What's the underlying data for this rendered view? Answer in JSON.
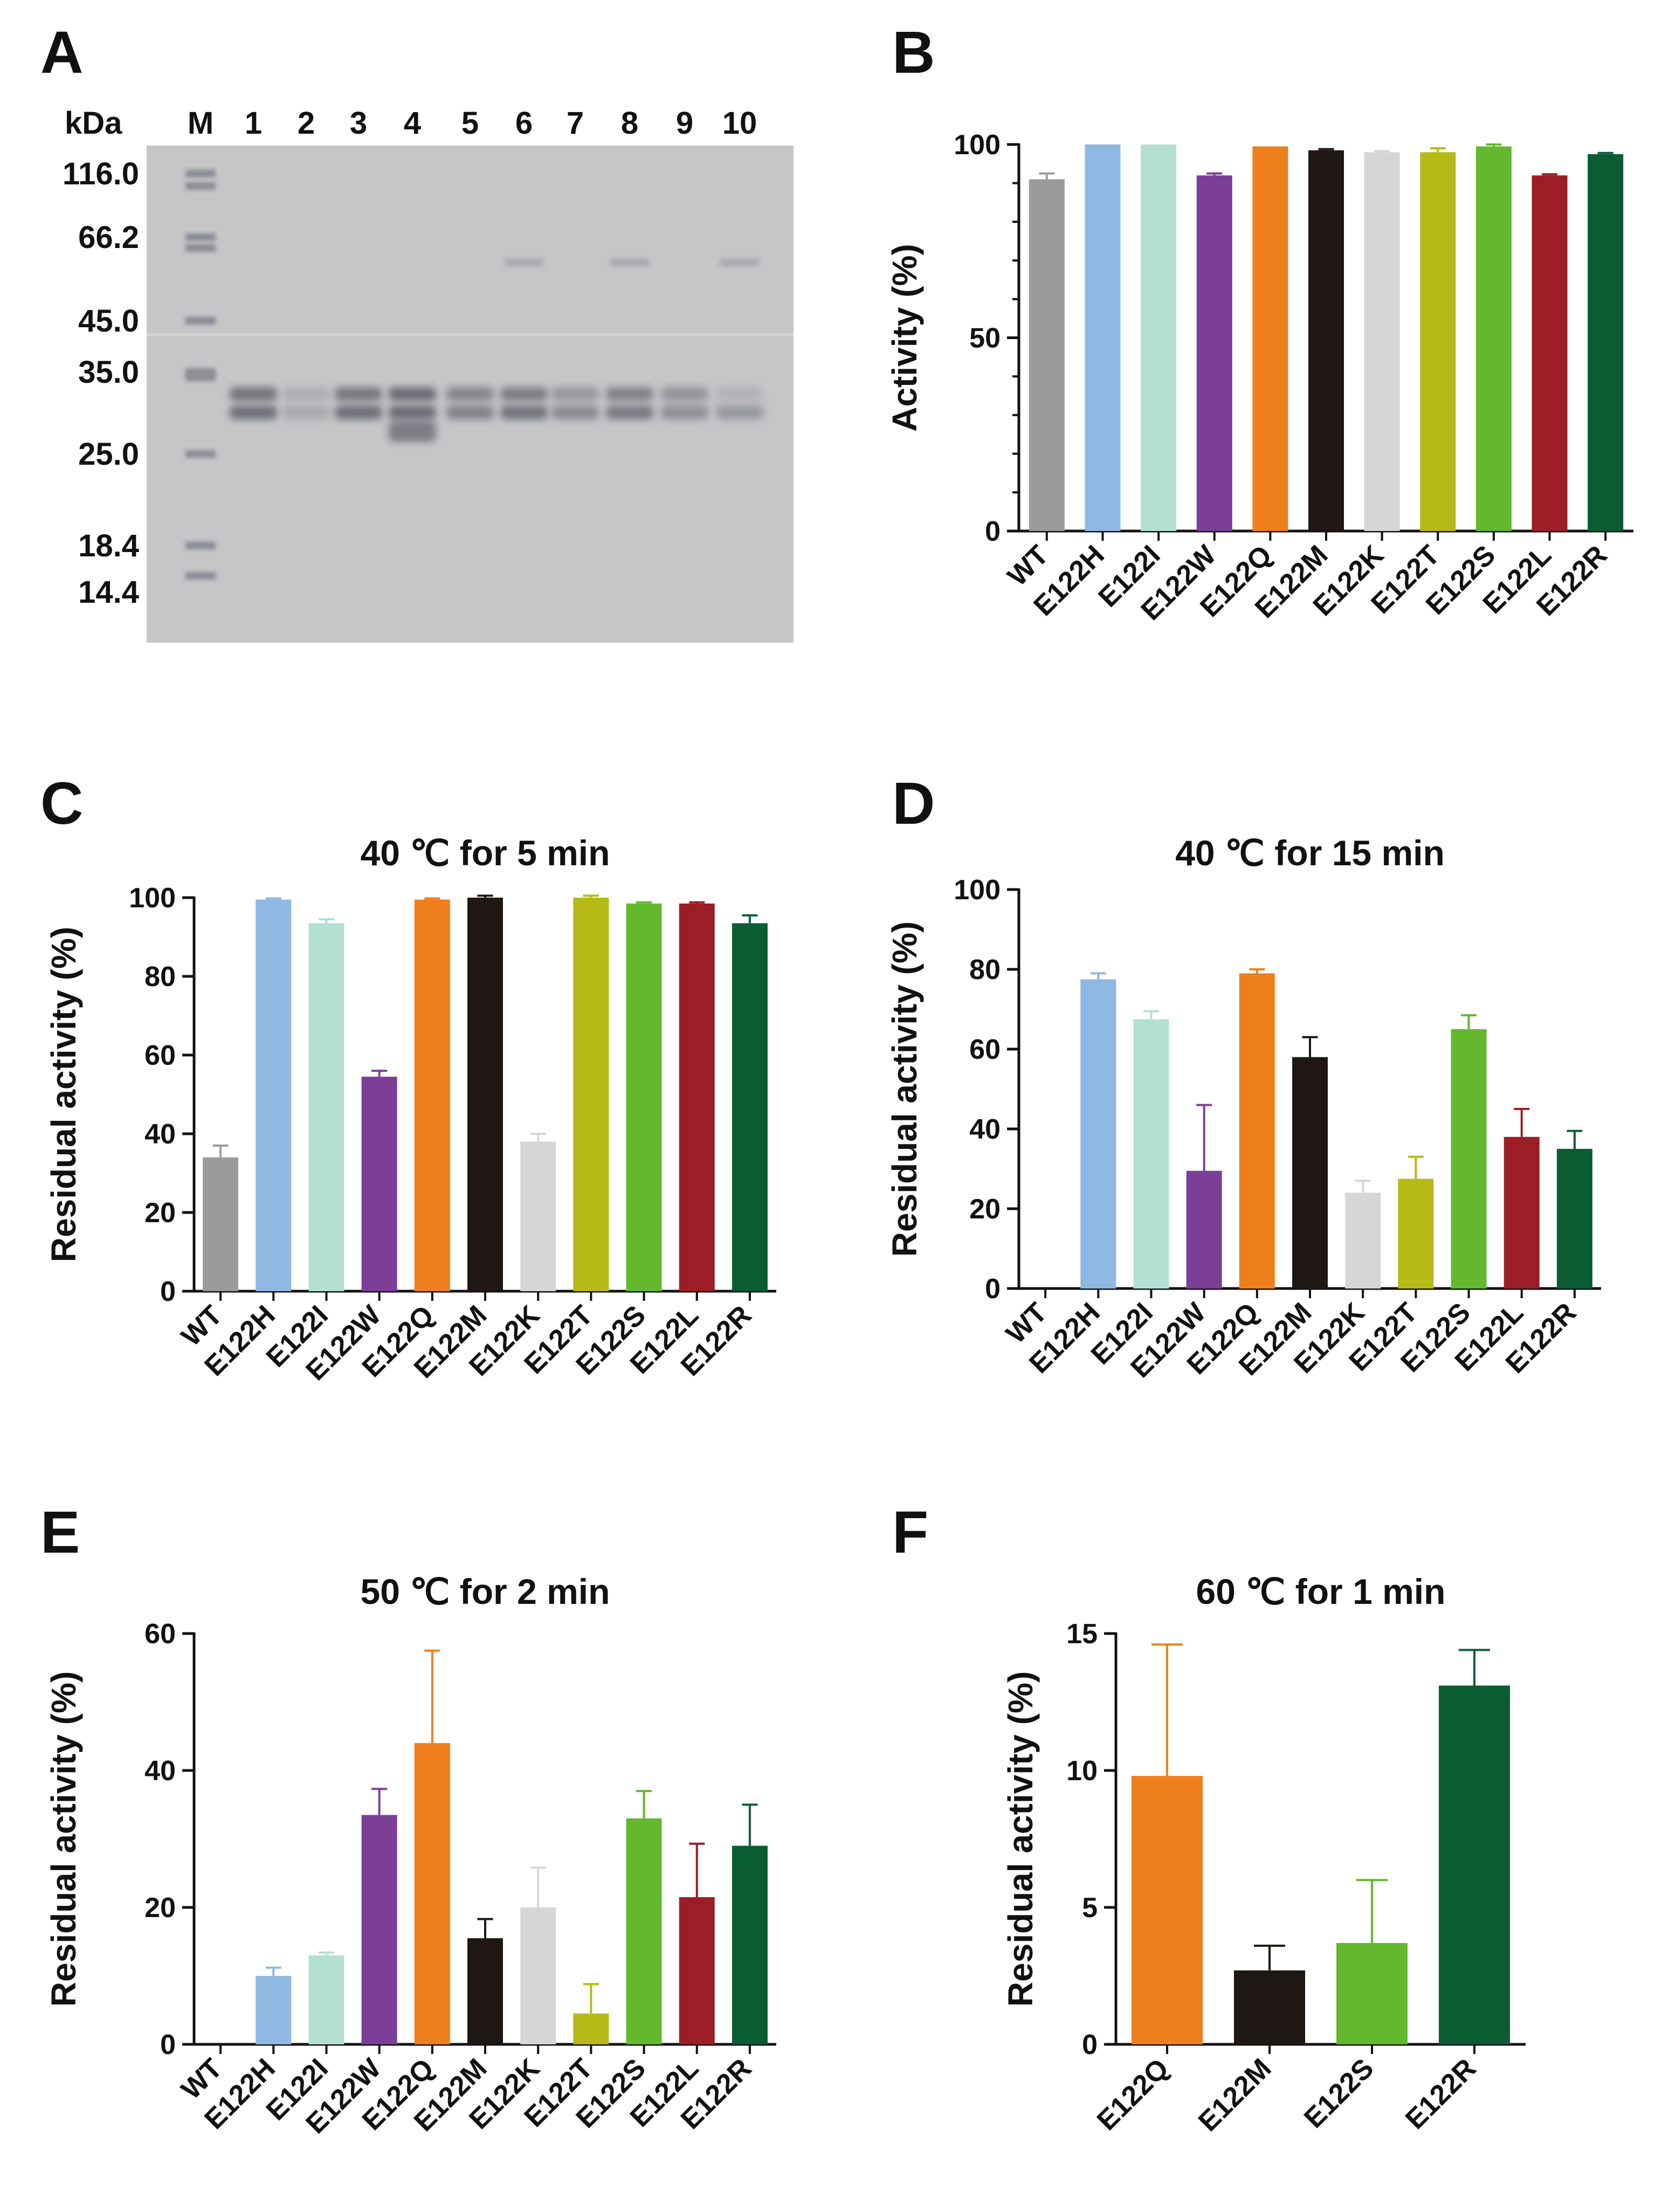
{
  "panel_letters": {
    "a": "A",
    "b": "B",
    "c": "C",
    "d": "D",
    "e": "E",
    "f": "F"
  },
  "colors": {
    "WT": "#9b9b9b",
    "E122H": "#8fb8e2",
    "E122I": "#b4e0d4",
    "E122W": "#7b3f98",
    "E122Q": "#ee7f1c",
    "E122M": "#1e1714",
    "E122K": "#d6d6d6",
    "E122T": "#b5ba17",
    "E122S": "#64b82d",
    "E122L": "#9c1d25",
    "E122R": "#0a5c33"
  },
  "gel": {
    "unit_label": "kDa",
    "lane_labels": [
      "M",
      "1",
      "2",
      "3",
      "4",
      "5",
      "6",
      "7",
      "8",
      "9",
      "10"
    ],
    "markers": [
      "116.0",
      "66.2",
      "45.0",
      "35.0",
      "25.0",
      "18.4",
      "14.4"
    ]
  },
  "chart_data": [
    {
      "id": "B",
      "type": "bar",
      "title": "",
      "ylabel": "Activity (%)",
      "ylim": [
        0,
        100
      ],
      "yticks": [
        0,
        50,
        100
      ],
      "categories": [
        "WT",
        "E122H",
        "E122I",
        "E122W",
        "E122Q",
        "E122M",
        "E122K",
        "E122T",
        "E122S",
        "E122L",
        "E122R"
      ],
      "values": [
        91,
        100,
        100,
        92,
        99.5,
        98.5,
        98,
        98,
        99.5,
        92,
        97.5
      ],
      "errors": [
        1.5,
        0,
        0,
        0.5,
        0,
        0.3,
        0.3,
        1,
        0.5,
        0.3,
        0.3
      ]
    },
    {
      "id": "C",
      "type": "bar",
      "title": "40 ℃ for 5 min",
      "ylabel": "Residual activity (%)",
      "ylim": [
        0,
        100
      ],
      "yticks": [
        0,
        20,
        40,
        60,
        80,
        100
      ],
      "categories": [
        "WT",
        "E122H",
        "E122I",
        "E122W",
        "E122Q",
        "E122M",
        "E122K",
        "E122T",
        "E122S",
        "E122L",
        "E122R"
      ],
      "values": [
        34,
        99.5,
        93.5,
        54.5,
        99.5,
        100,
        38,
        100,
        98.5,
        98.5,
        93.5
      ],
      "errors": [
        3,
        0.3,
        1,
        1.5,
        0.3,
        0.5,
        2,
        0.5,
        0.3,
        0.3,
        2
      ]
    },
    {
      "id": "D",
      "type": "bar",
      "title": "40 ℃ for 15 min",
      "ylabel": "Residual activity (%)",
      "ylim": [
        0,
        100
      ],
      "yticks": [
        0,
        20,
        40,
        60,
        80,
        100
      ],
      "categories": [
        "WT",
        "E122H",
        "E122I",
        "E122W",
        "E122Q",
        "E122M",
        "E122K",
        "E122T",
        "E122S",
        "E122L",
        "E122R"
      ],
      "values": [
        0,
        77.5,
        67.5,
        29.5,
        79,
        58,
        24,
        27.5,
        65,
        38,
        35
      ],
      "errors": [
        0,
        1.5,
        2,
        16.5,
        1,
        5,
        3,
        5.5,
        3.5,
        7,
        4.5
      ]
    },
    {
      "id": "E",
      "type": "bar",
      "title": "50 ℃ for 2 min",
      "ylabel": "Residual activity (%)",
      "ylim": [
        0,
        60
      ],
      "yticks": [
        0,
        20,
        40,
        60
      ],
      "categories": [
        "WT",
        "E122H",
        "E122I",
        "E122W",
        "E122Q",
        "E122M",
        "E122K",
        "E122T",
        "E122S",
        "E122L",
        "E122R"
      ],
      "values": [
        0,
        10,
        13,
        33.5,
        44,
        15.5,
        20,
        4.5,
        33,
        21.5,
        29
      ],
      "errors": [
        0,
        1.2,
        0.4,
        3.8,
        13.5,
        2.8,
        5.8,
        4.3,
        4,
        7.8,
        6
      ]
    },
    {
      "id": "F",
      "type": "bar",
      "title": "60 ℃ for 1 min",
      "ylabel": "Residual activity (%)",
      "ylim": [
        0,
        15
      ],
      "yticks": [
        0,
        5,
        10,
        15
      ],
      "categories": [
        "E122Q",
        "E122M",
        "E122S",
        "E122R"
      ],
      "values": [
        9.8,
        2.7,
        3.7,
        13.1
      ],
      "errors": [
        4.8,
        0.9,
        2.3,
        1.3
      ]
    }
  ]
}
